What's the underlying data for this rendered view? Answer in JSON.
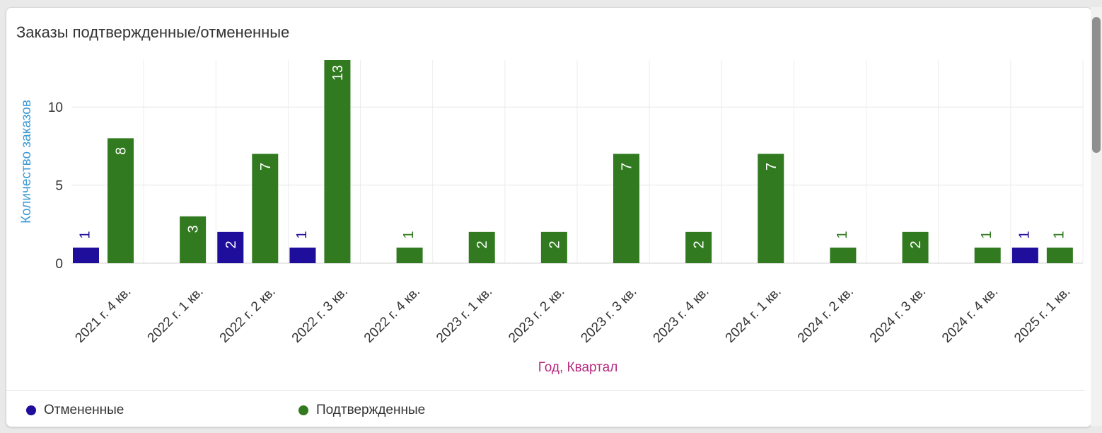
{
  "card": {
    "title": "Заказы подтвержденные/отмененные"
  },
  "chart_data": {
    "type": "bar",
    "title": "Заказы подтвержденные/отмененные",
    "xlabel": "Год, Квартал",
    "ylabel": "Количество заказов",
    "ylim": [
      0,
      13
    ],
    "yticks": [
      0,
      5,
      10
    ],
    "grid": true,
    "legend_position": "bottom-left",
    "categories": [
      "2021 г. 4 кв.",
      "2022 г. 1 кв.",
      "2022 г. 2 кв.",
      "2022 г. 3 кв.",
      "2022 г. 4 кв.",
      "2023 г. 1 кв.",
      "2023 г. 2 кв.",
      "2023 г. 3 кв.",
      "2023 г. 4 кв.",
      "2024 г. 1 кв.",
      "2024 г. 2 кв.",
      "2024 г. 3 кв.",
      "2024 г. 4 кв.",
      "2025 г. 1 кв."
    ],
    "series": [
      {
        "name": "Отмененные",
        "color": "#1f0d9c",
        "values": [
          1,
          0,
          2,
          1,
          0,
          0,
          0,
          0,
          0,
          0,
          0,
          0,
          0,
          1
        ]
      },
      {
        "name": "Подтвержденные",
        "color": "#317a1f",
        "values": [
          8,
          3,
          7,
          13,
          1,
          2,
          2,
          7,
          2,
          7,
          1,
          2,
          1,
          1
        ]
      }
    ],
    "axis_title_colors": {
      "x": "#b5287f",
      "y": "#3c9ad6"
    }
  }
}
